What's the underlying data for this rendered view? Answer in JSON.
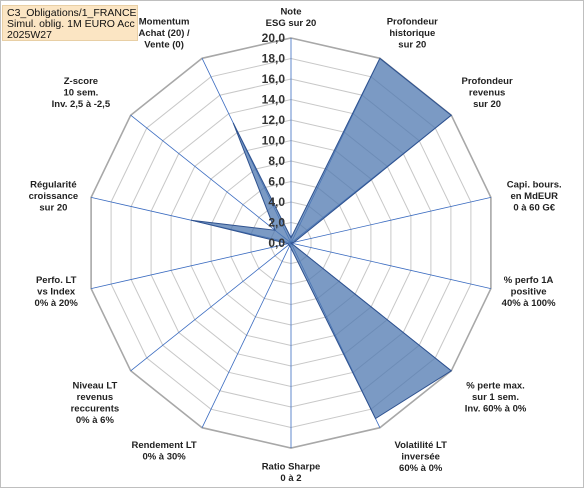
{
  "title_lines": [
    "C3_Obligations/1_FRANCE",
    "Simul. oblig. 1M EURO Acc",
    "2025W27"
  ],
  "chart_data": {
    "type": "radar",
    "rmin": 0,
    "rmax": 20,
    "tick_step": 2,
    "tick_labels": [
      "0,0",
      "2,0",
      "4,0",
      "6,0",
      "8,0",
      "10,0",
      "12,0",
      "14,0",
      "16,0",
      "18,0",
      "20,0"
    ],
    "grid": true,
    "colors": {
      "fill": "#4f78b0",
      "fill_opacity": 0.75,
      "stroke": "#2f528f",
      "grid": "#c8c8c8",
      "axis": "#3a6bc0"
    },
    "axes": [
      {
        "label": [
          "Note",
          "ESG sur 20"
        ],
        "value": 0.5
      },
      {
        "label": [
          "Profondeur",
          "historique",
          "sur 20"
        ],
        "value": 20
      },
      {
        "label": [
          "Profondeur",
          "revenus",
          "sur 20"
        ],
        "value": 20
      },
      {
        "label": [
          "Capi. bours.",
          "en MdEUR",
          "0 à 60 G€"
        ],
        "value": 0.3
      },
      {
        "label": [
          "% perfo 1A",
          "positive",
          "40% à 100%"
        ],
        "value": 0
      },
      {
        "label": [
          "% perte max.",
          "sur 1 sem.",
          "Inv. 60% à 0%"
        ],
        "value": 20
      },
      {
        "label": [
          "Volatilité LT",
          "inversée",
          "60% à 0%"
        ],
        "value": 19
      },
      {
        "label": [
          "Ratio Sharpe",
          "0 à 2"
        ],
        "value": 0.5
      },
      {
        "label": [
          "Rendement LT",
          "0% à 30%"
        ],
        "value": 0.3
      },
      {
        "label": [
          "Niveau LT",
          "revenus",
          "reccurents",
          "0% à 6%"
        ],
        "value": 0.3
      },
      {
        "label": [
          "Perfo. LT",
          "vs Index",
          "0% à 20%"
        ],
        "value": 0.3
      },
      {
        "label": [
          "Régularité",
          "croissance",
          "sur 20"
        ],
        "value": 10
      },
      {
        "label": [
          "Z-score",
          "10 sem.",
          "Inv. 2,5 à -2,5"
        ],
        "value": 2
      },
      {
        "label": [
          "Momentum",
          "Achat (20) /",
          "Vente (0)"
        ],
        "value": 13
      }
    ]
  }
}
